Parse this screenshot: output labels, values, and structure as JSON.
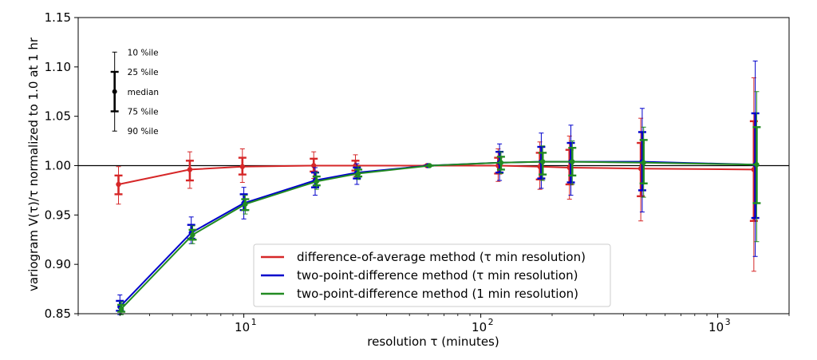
{
  "chart_data": {
    "type": "line",
    "xlabel": "resolution τ (minutes)",
    "ylabel": "variogram V(τ)/τ  normalized to 1.0 at 1 hr",
    "xscale": "log",
    "xlim": [
      2,
      2000
    ],
    "ylim": [
      0.85,
      1.15
    ],
    "y_ticks": [
      "0.85",
      "0.90",
      "0.95",
      "1.00",
      "1.05",
      "1.10",
      "1.15"
    ],
    "x_ticks": [
      {
        "base": "10",
        "exp": "1",
        "value": 10
      },
      {
        "base": "10",
        "exp": "2",
        "value": 100
      },
      {
        "base": "10",
        "exp": "3",
        "value": 1000
      }
    ],
    "reference_line": 1.0,
    "grid": false,
    "legend_position": "lower-center",
    "series": [
      {
        "name": "difference-of-average method (τ min resolution)",
        "color": "#d62728",
        "x": [
          3,
          6,
          10,
          20,
          30,
          60,
          120,
          180,
          240,
          480,
          1440
        ],
        "median": [
          0.981,
          0.996,
          0.999,
          1.0,
          1.0,
          1.0,
          1.0,
          0.999,
          0.998,
          0.997,
          0.996
        ],
        "p10": [
          0.961,
          0.977,
          0.983,
          0.987,
          0.989,
          1.0,
          0.984,
          0.976,
          0.966,
          0.944,
          0.893
        ],
        "p25": [
          0.971,
          0.985,
          0.991,
          0.994,
          0.995,
          1.0,
          0.992,
          0.986,
          0.981,
          0.969,
          0.944
        ],
        "p75": [
          0.99,
          1.005,
          1.008,
          1.007,
          1.005,
          1.0,
          1.008,
          1.013,
          1.016,
          1.023,
          1.045
        ],
        "p90": [
          0.999,
          1.014,
          1.017,
          1.014,
          1.011,
          1.0,
          1.017,
          1.024,
          1.03,
          1.048,
          1.089
        ]
      },
      {
        "name": "two-point-difference method (τ min resolution)",
        "color": "#0000cc",
        "x": [
          3,
          6,
          10,
          20,
          30,
          60,
          120,
          180,
          240,
          480,
          1440
        ],
        "median": [
          0.857,
          0.932,
          0.962,
          0.985,
          0.993,
          1.0,
          1.003,
          1.004,
          1.004,
          1.004,
          1.001
        ],
        "p10": [
          0.849,
          0.921,
          0.946,
          0.97,
          0.981,
          1.0,
          0.985,
          0.977,
          0.97,
          0.953,
          0.908
        ],
        "p25": [
          0.853,
          0.926,
          0.955,
          0.978,
          0.987,
          1.0,
          0.993,
          0.987,
          0.983,
          0.975,
          0.947
        ],
        "p75": [
          0.863,
          0.94,
          0.971,
          0.993,
          0.998,
          1.0,
          1.014,
          1.019,
          1.023,
          1.034,
          1.053
        ],
        "p90": [
          0.869,
          0.948,
          0.978,
          0.998,
          1.002,
          1.0,
          1.022,
          1.033,
          1.041,
          1.058,
          1.106
        ]
      },
      {
        "name": "two-point-difference method (1 min resolution)",
        "color": "#228b22",
        "x": [
          3,
          6,
          10,
          20,
          30,
          60,
          120,
          180,
          240,
          480,
          1440
        ],
        "median": [
          0.855,
          0.93,
          0.961,
          0.984,
          0.992,
          1.0,
          1.003,
          1.004,
          1.004,
          1.003,
          1.001
        ],
        "p10": [
          0.849,
          0.921,
          0.951,
          0.976,
          0.986,
          1.0,
          0.992,
          0.985,
          0.981,
          0.968,
          0.923
        ],
        "p25": [
          0.852,
          0.925,
          0.955,
          0.98,
          0.989,
          1.0,
          0.996,
          0.991,
          0.99,
          0.982,
          0.962
        ],
        "p75": [
          0.859,
          0.935,
          0.966,
          0.989,
          0.996,
          1.0,
          1.009,
          1.013,
          1.018,
          1.026,
          1.039
        ],
        "p90": [
          0.862,
          0.939,
          0.97,
          0.993,
          0.999,
          1.0,
          1.014,
          1.02,
          1.025,
          1.039,
          1.075
        ]
      }
    ],
    "percentile_key": {
      "labels": [
        "10 %ile",
        "25 %ile",
        "median",
        "75 %ile",
        "90 %ile"
      ],
      "values": [
        1.115,
        1.095,
        1.075,
        1.055,
        1.035
      ],
      "x": 2.85,
      "color": "#000000"
    }
  }
}
